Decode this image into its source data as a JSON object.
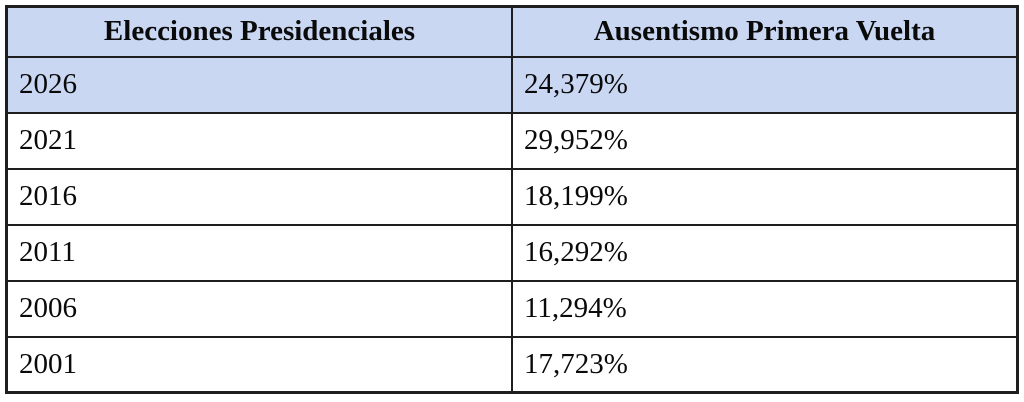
{
  "table": {
    "name": "ausentismo-elecciones-table",
    "columns": [
      {
        "label": "Elecciones Presidenciales"
      },
      {
        "label": "Ausentismo Primera Vuelta"
      }
    ],
    "rows": [
      {
        "year": "2026",
        "value": "24,379%",
        "highlighted": true
      },
      {
        "year": "2021",
        "value": "29,952%",
        "highlighted": false
      },
      {
        "year": "2016",
        "value": "18,199%",
        "highlighted": false
      },
      {
        "year": "2011",
        "value": "16,292%",
        "highlighted": false
      },
      {
        "year": "2006",
        "value": "11,294%",
        "highlighted": false
      },
      {
        "year": "2001",
        "value": "17,723%",
        "highlighted": false
      }
    ]
  },
  "colors": {
    "highlight": "#c9d7f3",
    "border": "#1e1e1e",
    "text": "#0a0a0a"
  }
}
